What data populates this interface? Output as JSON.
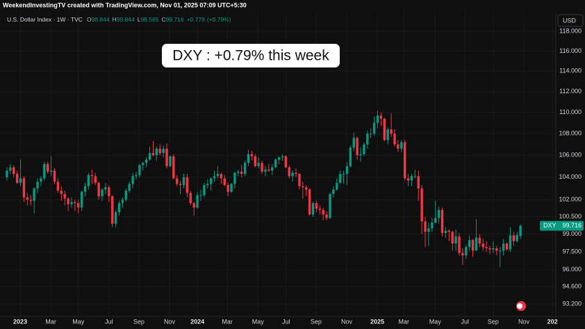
{
  "chart_data": {
    "type": "candlestick",
    "watermark": "WeekendInvestingTV created with TradingView.com, Nov 01, 2025 07:09 UTC+5:30",
    "title": "U.S. Dollar Index · 1W · TVC",
    "header": {
      "o": "O",
      "h": "H",
      "l": "L",
      "c": "C",
      "change": "+0.778",
      "change_pct": "(+0.79%)"
    },
    "currency": "USD",
    "annotation": "DXY : +0.79% this week",
    "badge_label": "DXY",
    "up_color": "#089981",
    "down_color": "#f23645",
    "log_scale": true,
    "grid": true,
    "xlim": [
      -2.04,
      161.4
    ],
    "ylim": [
      92.47,
      118.5
    ],
    "xticks": [
      {
        "value": 3.9,
        "label": "2023"
      },
      {
        "value": 12.9,
        "label": "Mar"
      },
      {
        "value": 21.0,
        "label": "May"
      },
      {
        "value": 30.0,
        "label": "Jul"
      },
      {
        "value": 38.8,
        "label": "Sep"
      },
      {
        "value": 47.8,
        "label": "Nov"
      },
      {
        "value": 56.0,
        "label": "2024"
      },
      {
        "value": 64.8,
        "label": "Mar"
      },
      {
        "value": 73.8,
        "label": "May"
      },
      {
        "value": 82.1,
        "label": "Jul"
      },
      {
        "value": 90.9,
        "label": "Sep"
      },
      {
        "value": 99.9,
        "label": "Nov"
      },
      {
        "value": 108.9,
        "label": "2025"
      },
      {
        "value": 116.7,
        "label": "Mar"
      },
      {
        "value": 125.9,
        "label": "May"
      },
      {
        "value": 134.7,
        "label": "Jul"
      },
      {
        "value": 143.0,
        "label": "Sep"
      },
      {
        "value": 152.0,
        "label": "Nov"
      },
      {
        "value": 160.4,
        "label": "202"
      }
    ],
    "yticks": [
      {
        "value": 118,
        "label": "118.000"
      },
      {
        "value": 116,
        "label": "116.000"
      },
      {
        "value": 114,
        "label": "114.000"
      },
      {
        "value": 112,
        "label": "112.000"
      },
      {
        "value": 110,
        "label": "110.000"
      },
      {
        "value": 108,
        "label": "108.000"
      },
      {
        "value": 106,
        "label": "106.000"
      },
      {
        "value": 104,
        "label": "104.000"
      },
      {
        "value": 102,
        "label": "102.000"
      },
      {
        "value": 100.5,
        "label": "100.500"
      },
      {
        "value": 99,
        "label": "99.000"
      },
      {
        "value": 97.5,
        "label": "97.500"
      },
      {
        "value": 96,
        "label": "96.000"
      },
      {
        "value": 94.6,
        "label": "94.600"
      },
      {
        "value": 93.2,
        "label": "93.200"
      }
    ],
    "ohlc": [
      [
        104.0,
        104.9,
        103.7,
        104.6
      ],
      [
        104.6,
        105.2,
        104.3,
        104.9
      ],
      [
        104.9,
        105.1,
        104.0,
        104.3
      ],
      [
        104.3,
        104.6,
        103.4,
        103.5
      ],
      [
        103.5,
        105.6,
        103.2,
        103.9
      ],
      [
        103.9,
        104.1,
        101.8,
        102.2
      ],
      [
        102.2,
        102.6,
        101.5,
        102.0
      ],
      [
        102.0,
        102.4,
        101.5,
        101.9
      ],
      [
        101.9,
        103.1,
        100.8,
        103.0
      ],
      [
        103.0,
        103.9,
        102.6,
        103.6
      ],
      [
        103.6,
        104.1,
        103.2,
        103.9
      ],
      [
        103.9,
        105.4,
        103.7,
        105.2
      ],
      [
        105.2,
        105.4,
        104.3,
        104.5
      ],
      [
        104.5,
        105.9,
        104.1,
        104.6
      ],
      [
        104.6,
        104.8,
        103.4,
        103.6
      ],
      [
        103.6,
        103.9,
        102.6,
        102.8
      ],
      [
        102.8,
        103.2,
        101.9,
        102.5
      ],
      [
        102.5,
        102.8,
        101.5,
        102.1
      ],
      [
        102.1,
        102.2,
        101.0,
        101.6
      ],
      [
        101.6,
        102.2,
        101.3,
        101.8
      ],
      [
        101.8,
        102.0,
        101.0,
        101.7
      ],
      [
        101.7,
        102.0,
        100.8,
        101.3
      ],
      [
        101.3,
        102.8,
        101.0,
        102.7
      ],
      [
        102.7,
        103.5,
        102.3,
        103.2
      ],
      [
        103.2,
        104.4,
        102.9,
        104.2
      ],
      [
        104.2,
        104.7,
        103.4,
        104.1
      ],
      [
        104.1,
        104.4,
        103.3,
        103.5
      ],
      [
        103.5,
        103.6,
        102.0,
        102.3
      ],
      [
        102.3,
        103.0,
        101.9,
        102.9
      ],
      [
        102.9,
        103.5,
        102.5,
        103.1
      ],
      [
        103.1,
        103.3,
        101.8,
        102.3
      ],
      [
        102.3,
        102.4,
        99.6,
        99.9
      ],
      [
        99.9,
        101.1,
        99.6,
        100.9
      ],
      [
        100.9,
        101.9,
        100.6,
        101.7
      ],
      [
        101.7,
        102.2,
        101.3,
        102.0
      ],
      [
        102.0,
        103.0,
        101.8,
        102.8
      ],
      [
        102.8,
        103.6,
        102.6,
        103.4
      ],
      [
        103.4,
        104.4,
        103.0,
        104.1
      ],
      [
        104.1,
        104.5,
        103.8,
        104.2
      ],
      [
        104.2,
        105.2,
        104.0,
        105.1
      ],
      [
        105.1,
        105.4,
        104.6,
        105.3
      ],
      [
        105.3,
        105.8,
        104.9,
        105.6
      ],
      [
        105.6,
        106.8,
        105.5,
        106.2
      ],
      [
        106.2,
        107.3,
        105.9,
        106.0
      ],
      [
        106.0,
        106.8,
        105.5,
        106.6
      ],
      [
        106.6,
        107.0,
        106.0,
        106.2
      ],
      [
        106.2,
        106.9,
        105.8,
        106.6
      ],
      [
        106.6,
        107.1,
        104.8,
        105.0
      ],
      [
        105.0,
        106.0,
        104.9,
        105.9
      ],
      [
        105.9,
        106.1,
        103.8,
        103.9
      ],
      [
        103.9,
        104.2,
        103.2,
        103.4
      ],
      [
        103.4,
        103.7,
        102.5,
        103.3
      ],
      [
        103.3,
        104.3,
        103.0,
        104.0
      ],
      [
        104.0,
        104.3,
        102.2,
        102.6
      ],
      [
        102.6,
        102.8,
        101.5,
        101.7
      ],
      [
        101.7,
        101.8,
        100.6,
        101.3
      ],
      [
        101.3,
        102.7,
        101.2,
        102.4
      ],
      [
        102.4,
        102.9,
        101.9,
        102.4
      ],
      [
        102.4,
        103.5,
        102.2,
        103.3
      ],
      [
        103.3,
        103.8,
        103.0,
        103.4
      ],
      [
        103.4,
        104.0,
        102.8,
        103.9
      ],
      [
        103.9,
        104.6,
        103.6,
        104.1
      ],
      [
        104.1,
        105.0,
        103.9,
        104.3
      ],
      [
        104.3,
        104.4,
        103.4,
        103.9
      ],
      [
        103.9,
        104.2,
        103.2,
        103.3
      ],
      [
        103.3,
        103.5,
        102.3,
        102.7
      ],
      [
        102.7,
        103.5,
        102.6,
        103.4
      ],
      [
        103.4,
        104.5,
        103.0,
        104.4
      ],
      [
        104.4,
        104.7,
        104.1,
        104.5
      ],
      [
        104.5,
        105.1,
        104.0,
        104.3
      ],
      [
        104.3,
        105.5,
        104.1,
        105.3
      ],
      [
        105.3,
        106.5,
        105.0,
        106.1
      ],
      [
        106.1,
        106.4,
        105.5,
        105.9
      ],
      [
        105.9,
        106.1,
        104.9,
        105.0
      ],
      [
        105.0,
        105.8,
        104.8,
        105.3
      ],
      [
        105.3,
        105.5,
        104.3,
        104.5
      ],
      [
        104.5,
        105.0,
        104.1,
        104.7
      ],
      [
        104.7,
        105.2,
        104.5,
        104.6
      ],
      [
        104.6,
        105.2,
        104.2,
        104.9
      ],
      [
        104.9,
        105.7,
        104.8,
        105.6
      ],
      [
        105.6,
        105.9,
        105.2,
        105.8
      ],
      [
        105.8,
        106.1,
        105.5,
        105.9
      ],
      [
        105.9,
        106.0,
        104.8,
        104.9
      ],
      [
        104.9,
        105.1,
        103.9,
        104.1
      ],
      [
        104.1,
        104.6,
        103.6,
        104.4
      ],
      [
        104.4,
        104.8,
        104.0,
        104.3
      ],
      [
        104.3,
        104.4,
        102.9,
        103.2
      ],
      [
        103.2,
        103.6,
        102.1,
        103.1
      ],
      [
        103.1,
        103.3,
        102.3,
        102.9
      ],
      [
        102.9,
        103.0,
        100.6,
        100.7
      ],
      [
        100.7,
        101.8,
        100.5,
        101.7
      ],
      [
        101.7,
        101.9,
        100.9,
        101.2
      ],
      [
        101.2,
        101.5,
        100.7,
        101.1
      ],
      [
        101.1,
        101.3,
        100.2,
        100.7
      ],
      [
        100.7,
        101.0,
        100.2,
        100.4
      ],
      [
        100.4,
        102.6,
        100.3,
        102.5
      ],
      [
        102.5,
        103.2,
        102.2,
        102.9
      ],
      [
        102.9,
        103.9,
        102.8,
        103.5
      ],
      [
        103.5,
        104.6,
        103.4,
        104.3
      ],
      [
        104.3,
        104.6,
        103.4,
        104.3
      ],
      [
        104.3,
        105.4,
        103.3,
        105.0
      ],
      [
        105.0,
        106.9,
        104.9,
        106.7
      ],
      [
        106.7,
        108.1,
        106.4,
        107.6
      ],
      [
        107.6,
        107.7,
        105.6,
        106.0
      ],
      [
        106.0,
        106.7,
        105.4,
        106.1
      ],
      [
        106.1,
        107.2,
        105.9,
        107.0
      ],
      [
        107.0,
        108.3,
        106.6,
        108.0
      ],
      [
        108.0,
        108.5,
        107.6,
        108.0
      ],
      [
        108.0,
        109.6,
        107.8,
        109.0
      ],
      [
        109.0,
        110.17,
        108.5,
        109.7
      ],
      [
        109.7,
        110.0,
        108.7,
        109.4
      ],
      [
        109.4,
        109.5,
        107.3,
        107.4
      ],
      [
        107.4,
        108.6,
        107.0,
        108.4
      ],
      [
        108.4,
        109.9,
        107.7,
        108.0
      ],
      [
        108.0,
        108.4,
        106.8,
        107.0
      ],
      [
        107.0,
        107.4,
        106.3,
        106.6
      ],
      [
        106.6,
        107.4,
        106.3,
        107.2
      ],
      [
        107.2,
        107.4,
        103.7,
        103.9
      ],
      [
        103.9,
        104.3,
        103.2,
        103.7
      ],
      [
        103.7,
        104.3,
        103.2,
        104.1
      ],
      [
        104.1,
        104.7,
        103.9,
        104.1
      ],
      [
        104.1,
        104.6,
        101.9,
        103.0
      ],
      [
        103.0,
        103.3,
        99.0,
        100.1
      ],
      [
        100.1,
        100.5,
        97.9,
        99.2
      ],
      [
        99.2,
        100.0,
        98.0,
        99.5
      ],
      [
        99.5,
        100.4,
        99.2,
        100.0
      ],
      [
        100.0,
        101.9,
        99.9,
        100.4
      ],
      [
        100.4,
        101.4,
        99.9,
        101.1
      ],
      [
        101.1,
        101.3,
        98.8,
        99.1
      ],
      [
        99.1,
        99.6,
        98.7,
        99.3
      ],
      [
        99.3,
        99.4,
        98.4,
        99.2
      ],
      [
        99.2,
        99.3,
        97.6,
        98.2
      ],
      [
        98.2,
        99.4,
        97.6,
        98.8
      ],
      [
        98.8,
        99.1,
        97.2,
        97.4
      ],
      [
        97.4,
        97.8,
        96.4,
        97.2
      ],
      [
        97.2,
        98.1,
        96.9,
        97.9
      ],
      [
        97.9,
        98.9,
        97.6,
        98.5
      ],
      [
        98.5,
        98.6,
        97.1,
        97.6
      ],
      [
        97.6,
        100.3,
        97.6,
        98.7
      ],
      [
        98.7,
        99.0,
        97.9,
        98.2
      ],
      [
        98.2,
        98.6,
        97.6,
        97.9
      ],
      [
        97.9,
        98.4,
        97.5,
        97.8
      ],
      [
        97.8,
        98.0,
        97.3,
        97.7
      ],
      [
        97.7,
        98.4,
        97.4,
        97.8
      ],
      [
        97.8,
        98.0,
        97.2,
        97.6
      ],
      [
        97.6,
        97.9,
        96.2,
        97.6
      ],
      [
        97.6,
        98.6,
        97.2,
        98.2
      ],
      [
        98.2,
        98.3,
        97.6,
        97.7
      ],
      [
        97.7,
        99.6,
        97.5,
        98.9
      ],
      [
        98.9,
        99.2,
        98.0,
        98.4
      ],
      [
        98.4,
        99.2,
        98.3,
        98.938
      ],
      [
        98.844,
        99.844,
        98.565,
        99.716
      ]
    ]
  }
}
